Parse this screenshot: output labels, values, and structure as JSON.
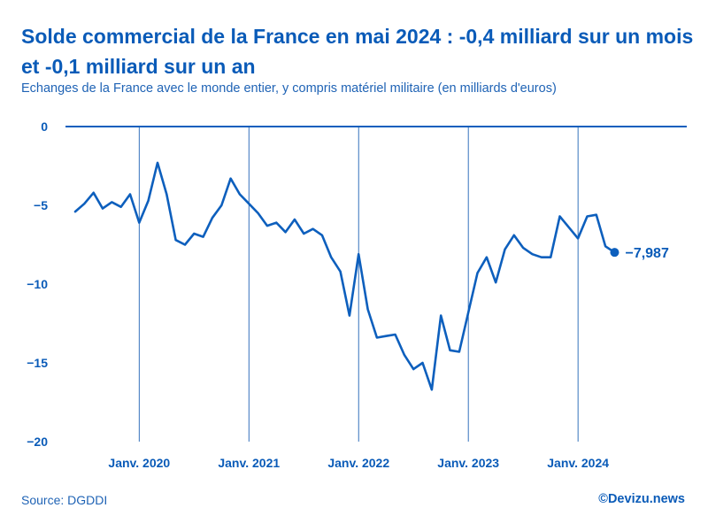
{
  "header": {
    "title": "Solde commercial de la France en mai 2024 : -0,4 milliard sur un mois et -0,1 milliard sur un an",
    "subtitle": "Echanges de la France avec le monde entier, y compris matériel militaire (en milliards d'euros)"
  },
  "footer": {
    "source": "Source: DGDDI",
    "brand": "©Devizu.news"
  },
  "colors": {
    "accent": "#0a5bb8",
    "line": "#0d5fbd",
    "text": "#1f63b5"
  },
  "chart_data": {
    "type": "line",
    "title": "Solde commercial de la France",
    "ylabel": "milliards d'euros",
    "ylim": [
      -20,
      0
    ],
    "yticks": [
      0,
      -5,
      -10,
      -15,
      -20
    ],
    "ytick_labels": [
      "0",
      "−5",
      "−10",
      "−15",
      "−20"
    ],
    "xticks": [
      {
        "label": "Janv. 2020",
        "index": 7
      },
      {
        "label": "Janv. 2021",
        "index": 19
      },
      {
        "label": "Janv. 2022",
        "index": 31
      },
      {
        "label": "Janv. 2023",
        "index": 43
      },
      {
        "label": "Janv. 2024",
        "index": 55
      }
    ],
    "last_value_label": "−7,987",
    "series": [
      {
        "name": "Solde commercial",
        "values": [
          -5.4,
          -4.9,
          -4.2,
          -5.2,
          -4.8,
          -5.1,
          -4.3,
          -6.1,
          -4.7,
          -2.3,
          -4.3,
          -7.2,
          -7.5,
          -6.8,
          -7.0,
          -5.8,
          -5.0,
          -3.3,
          -4.3,
          -4.9,
          -5.5,
          -6.3,
          -6.1,
          -6.7,
          -5.9,
          -6.8,
          -6.5,
          -6.9,
          -8.3,
          -9.2,
          -12.0,
          -8.1,
          -11.6,
          -13.4,
          -13.3,
          -13.2,
          -14.5,
          -15.4,
          -15.0,
          -16.7,
          -12.0,
          -14.2,
          -14.3,
          -11.8,
          -9.3,
          -8.3,
          -9.9,
          -7.8,
          -6.9,
          -7.7,
          -8.1,
          -8.3,
          -8.3,
          -5.7,
          -6.4,
          -7.1,
          -5.7,
          -5.6,
          -7.6,
          -7.987
        ]
      }
    ]
  }
}
